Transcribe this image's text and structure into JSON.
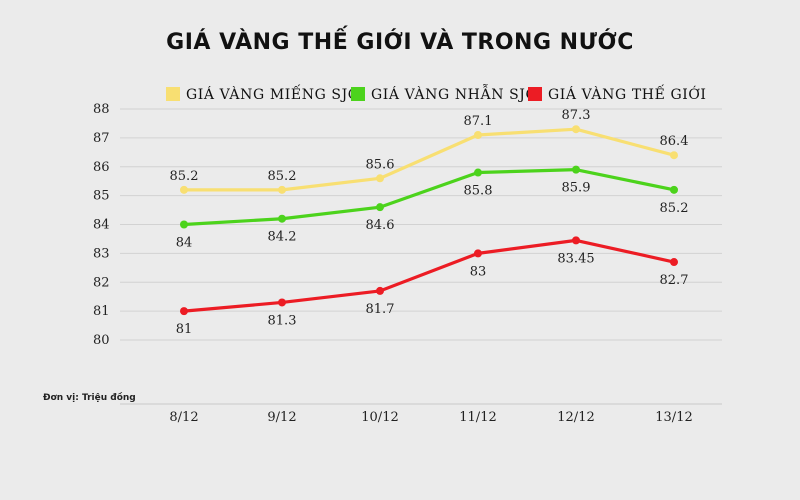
{
  "chart_data": {
    "type": "line",
    "title": "GIÁ VÀNG THẾ GIỚI VÀ TRONG NƯỚC",
    "unit_note": "Đơn vị: Triệu đồng",
    "categories": [
      "8/12",
      "9/12",
      "10/12",
      "11/12",
      "12/12",
      "13/12"
    ],
    "ylim": [
      80,
      88
    ],
    "yticks": [
      "80",
      "81",
      "82",
      "83",
      "84",
      "85",
      "86",
      "87",
      "88"
    ],
    "grid": true,
    "legend_position": "top",
    "series": [
      {
        "name": "GIÁ VÀNG MIẾNG SJC",
        "color": "#f8df72",
        "values": [
          85.2,
          85.2,
          85.6,
          87.1,
          87.3,
          86.4
        ],
        "labels": [
          "85.2",
          "85.2",
          "85.6",
          "87.1",
          "87.3",
          "86.4"
        ],
        "label_pos": "above"
      },
      {
        "name": "GIÁ VÀNG NHẪN SJC",
        "color": "#4cd31c",
        "values": [
          84,
          84.2,
          84.6,
          85.8,
          85.9,
          85.2
        ],
        "labels": [
          "84",
          "84.2",
          "84.6",
          "85.8",
          "85.9",
          "85.2"
        ],
        "label_pos": "below"
      },
      {
        "name": "GIÁ VÀNG THẾ GIỚI",
        "color": "#ec1c24",
        "values": [
          81,
          81.3,
          81.7,
          83,
          83.45,
          82.7
        ],
        "labels": [
          "81",
          "81.3",
          "81.7",
          "83",
          "83.45",
          "82.7"
        ],
        "label_pos": "below"
      }
    ]
  }
}
